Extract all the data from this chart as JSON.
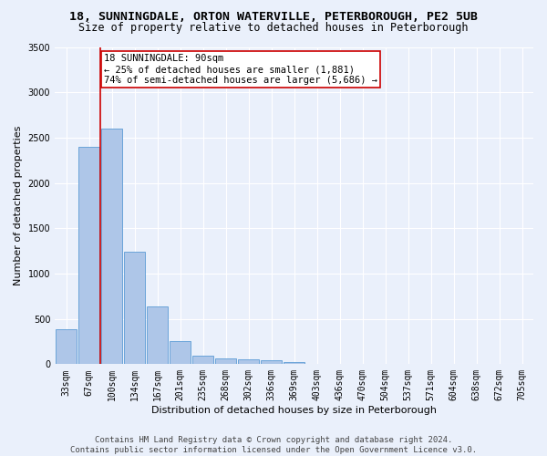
{
  "title": "18, SUNNINGDALE, ORTON WATERVILLE, PETERBOROUGH, PE2 5UB",
  "subtitle": "Size of property relative to detached houses in Peterborough",
  "xlabel": "Distribution of detached houses by size in Peterborough",
  "ylabel": "Number of detached properties",
  "footer_line1": "Contains HM Land Registry data © Crown copyright and database right 2024.",
  "footer_line2": "Contains public sector information licensed under the Open Government Licence v3.0.",
  "annotation_title": "18 SUNNINGDALE: 90sqm",
  "annotation_line2": "← 25% of detached houses are smaller (1,881)",
  "annotation_line3": "74% of semi-detached houses are larger (5,686) →",
  "categories": [
    "33sqm",
    "67sqm",
    "100sqm",
    "134sqm",
    "167sqm",
    "201sqm",
    "235sqm",
    "268sqm",
    "302sqm",
    "336sqm",
    "369sqm",
    "403sqm",
    "436sqm",
    "470sqm",
    "504sqm",
    "537sqm",
    "571sqm",
    "604sqm",
    "638sqm",
    "672sqm",
    "705sqm"
  ],
  "bar_values": [
    390,
    2400,
    2600,
    1240,
    635,
    255,
    95,
    60,
    55,
    40,
    25,
    0,
    0,
    0,
    0,
    0,
    0,
    0,
    0,
    0,
    0
  ],
  "bar_color": "#aec6e8",
  "bar_edge_color": "#5b9bd5",
  "highlight_bar_index": 2,
  "highlight_line_color": "#cc0000",
  "ylim": [
    0,
    3500
  ],
  "yticks": [
    0,
    500,
    1000,
    1500,
    2000,
    2500,
    3000,
    3500
  ],
  "bg_color": "#eaf0fb",
  "grid_color": "#ffffff",
  "annotation_box_color": "#ffffff",
  "annotation_box_edge": "#cc0000",
  "title_fontsize": 9.5,
  "subtitle_fontsize": 8.5,
  "axis_label_fontsize": 8,
  "tick_fontsize": 7,
  "annotation_fontsize": 7.5,
  "footer_fontsize": 6.5
}
